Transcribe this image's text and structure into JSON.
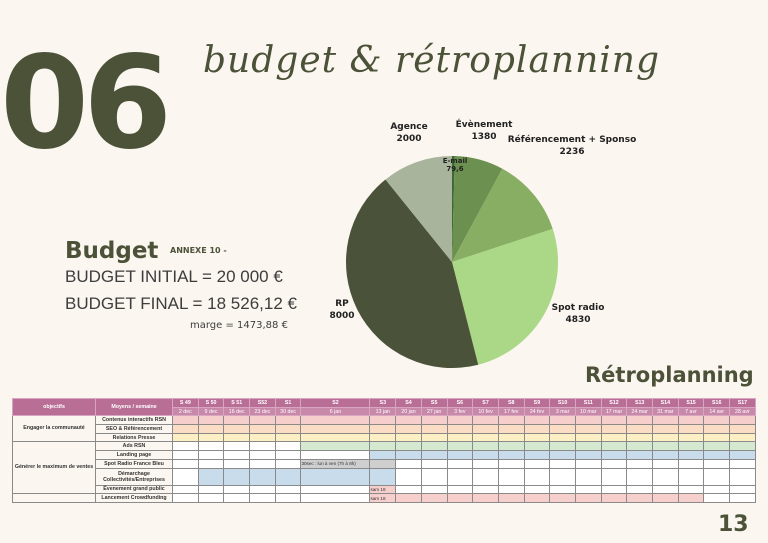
{
  "section_number": "06",
  "section_title": "budget & rétroplanning",
  "budget": {
    "title": "Budget",
    "annexe": "ANNEXE 10 -",
    "initial": "BUDGET INITIAL = 20 000 €",
    "final": "BUDGET FINAL = 18 526,12 €",
    "marge": "marge = 1473,88 €"
  },
  "chart_data": {
    "type": "pie",
    "slices": [
      {
        "label": "E-mail",
        "value": 79.6,
        "display": "79,6",
        "color": "#3d6a33"
      },
      {
        "label": "Évènement",
        "value": 1380,
        "display": "1380",
        "color": "#6c904f"
      },
      {
        "label": "Référencement + Sponso",
        "value": 2236,
        "display": "2236",
        "color": "#87ae62"
      },
      {
        "label": "Spot radio",
        "value": 4830,
        "display": "4830",
        "color": "#aad886"
      },
      {
        "label": "RP",
        "value": 8000,
        "display": "8000",
        "color": "#4a5339"
      },
      {
        "label": "Agence",
        "value": 2000,
        "display": "2000",
        "color": "#a8b59c"
      }
    ]
  },
  "retroplanning": {
    "title": "Rétroplanning",
    "header_objectifs": "objectifs",
    "header_moyens": "Moyens / semaine",
    "weeks": [
      "S 49",
      "S 50",
      "S 51",
      "S52",
      "S1",
      "S2",
      "S3",
      "S4",
      "S5",
      "S6",
      "S7",
      "S8",
      "S9",
      "S10",
      "S11",
      "S12",
      "S13",
      "S14",
      "S15",
      "S16",
      "S17"
    ],
    "dates": [
      "2 dec",
      "9 dec",
      "16 dec",
      "23 dec",
      "30 dec",
      "6 jan",
      "13 jan",
      "20 jan",
      "27 jan",
      "3 fev",
      "10 fev",
      "17 fev",
      "24 fev",
      "3 mar",
      "10 mar",
      "17 mar",
      "24 mar",
      "31 mar",
      "7 avr",
      "14 avr",
      "28 avr"
    ],
    "colors": {
      "p": "#f6cfcd",
      "o": "#fbdcc4",
      "y": "#fdefc4",
      "g": "#d4e9cf",
      "b": "#c9dcec",
      "s": "#cfcfcf",
      "w": "#ffffff"
    },
    "groups": [
      {
        "objectif": "Engager la communauté",
        "rows": [
          {
            "moyen": "Contenus interactifs RSN",
            "cells": "ppppppppppppppppppppp"
          },
          {
            "moyen": "SEO & Référencement",
            "cells": "ooooooooooooooooooooo"
          },
          {
            "moyen": "Relations Presse",
            "cells": "yyyyyyyyyyyyyyyyyyyyy"
          }
        ]
      },
      {
        "objectif": "Générer le maximum de ventes",
        "rows": [
          {
            "moyen": "Ads RSN",
            "cells": "wwwwwgggggggggggggggg"
          },
          {
            "moyen": "Landing page",
            "cells": "wwwwwwbbbbbbbbbbbbbbb"
          },
          {
            "moyen": "Spot Radio France Bleu",
            "cells": "wwwwwsswwwwwwwwwwwwww",
            "notes": {
              "5": "30sec : lun à ven (7h à 8h)"
            }
          },
          {
            "moyen": "Démarchage Collectivités/Entreprises",
            "cells": "wbbbbbbwwwwwwwwwwwwww",
            "tall": true
          },
          {
            "moyen": "Évenement grand public",
            "cells": "wwwwwwpwwwwwwwwwwwwww",
            "notes": {
              "6": "sam 18"
            }
          }
        ]
      },
      {
        "objectif": "",
        "rows": [
          {
            "moyen": "Lancement Crowdfunding",
            "cells": "wwwwwwpppppppppppppww",
            "notes": {
              "6": "sam 18"
            }
          }
        ]
      }
    ]
  },
  "page_number": "13"
}
